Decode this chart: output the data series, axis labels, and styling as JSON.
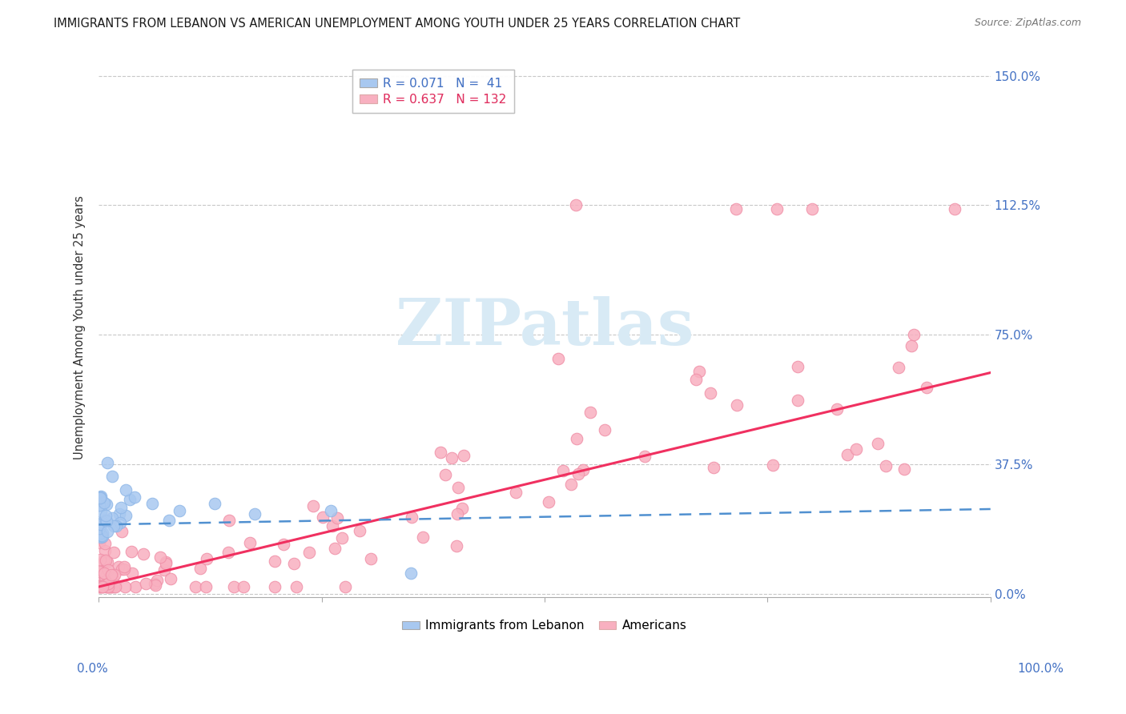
{
  "title": "IMMIGRANTS FROM LEBANON VS AMERICAN UNEMPLOYMENT AMONG YOUTH UNDER 25 YEARS CORRELATION CHART",
  "source": "Source: ZipAtlas.com",
  "ylabel": "Unemployment Among Youth under 25 years",
  "xlim": [
    0.0,
    1.0
  ],
  "ylim": [
    -0.01,
    1.55
  ],
  "y_ticks_vals": [
    0.0,
    0.375,
    0.75,
    1.125,
    1.5
  ],
  "y_ticks_labels": [
    "0.0%",
    "37.5%",
    "75.0%",
    "112.5%",
    "150.0%"
  ],
  "legend_blue": {
    "R": 0.071,
    "N": 41,
    "label": "Immigrants from Lebanon"
  },
  "legend_pink": {
    "R": 0.637,
    "N": 132,
    "label": "Americans"
  },
  "blue_color": "#A8C8F0",
  "pink_color": "#F8B0C0",
  "blue_edge_color": "#90B8E8",
  "pink_edge_color": "#F090A8",
  "blue_line_color": "#5090D0",
  "pink_line_color": "#F03060",
  "grid_color": "#C8C8C8",
  "watermark_color": "#D8EAF5",
  "blue_reg_slope": 0.045,
  "blue_reg_intercept": 0.2,
  "pink_reg_slope": 0.62,
  "pink_reg_intercept": 0.02
}
